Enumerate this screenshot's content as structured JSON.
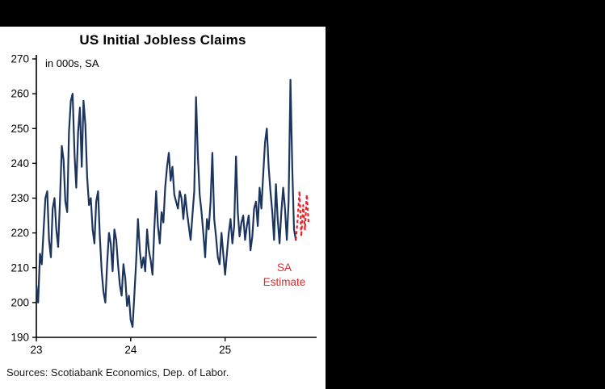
{
  "window": {
    "background": "#000000",
    "panel_background": "#ffffff"
  },
  "chart": {
    "title": "US Initial Jobless Claims",
    "subtitle": "in 000s, SA",
    "source": "Sources: Scotiabank Economics, Dep. of Labor.",
    "annotation": {
      "line1": "SA",
      "line2": "Estimate",
      "color": "#e5262b"
    }
  },
  "chart_data": {
    "type": "line",
    "title": "US Initial Jobless Claims",
    "ylabel": "in 000s, SA",
    "ylim": [
      190,
      270
    ],
    "xlim": [
      23,
      25.97
    ],
    "y_ticks": [
      190,
      200,
      210,
      220,
      230,
      240,
      250,
      260,
      270
    ],
    "x_ticks": [
      {
        "label": "23",
        "value": 23
      },
      {
        "label": "24",
        "value": 24
      },
      {
        "label": "25",
        "value": 25
      }
    ],
    "x_unit": "year (weekly observations)",
    "grid": false,
    "legend_position": "none",
    "series": [
      {
        "name": "US initial jobless claims (actual, SA)",
        "color": "#1c355e",
        "dash": false,
        "weeks_per_year": 52,
        "x_start": 23,
        "values": [
          205,
          200,
          214,
          211,
          221,
          230,
          232,
          218,
          213,
          227,
          230,
          221,
          216,
          229,
          245,
          241,
          229,
          226,
          249,
          258,
          260,
          243,
          233,
          249,
          256,
          239,
          258,
          251,
          236,
          228,
          230,
          221,
          217,
          229,
          232,
          219,
          209,
          203,
          200,
          211,
          220,
          217,
          209,
          221,
          218,
          211,
          205,
          202,
          211,
          207,
          199,
          202,
          195,
          193,
          202,
          212,
          224,
          215,
          210,
          213,
          209,
          221,
          215,
          212,
          208,
          221,
          232,
          222,
          217,
          226,
          223,
          233,
          239,
          243,
          235,
          239,
          231,
          229,
          227,
          232,
          230,
          224,
          231,
          226,
          222,
          218,
          225,
          232,
          259,
          242,
          231,
          226,
          220,
          213,
          224,
          221,
          229,
          243,
          224,
          219,
          213,
          211,
          220,
          214,
          208,
          214,
          220,
          224,
          217,
          222,
          242,
          226,
          219,
          223,
          225,
          218,
          222,
          225,
          215,
          219,
          227,
          229,
          222,
          233,
          227,
          237,
          246,
          250,
          239,
          232,
          226,
          218,
          234,
          224,
          217,
          226,
          233,
          227,
          218,
          229,
          264,
          239,
          221,
          218
        ]
      },
      {
        "name": "SA Estimate",
        "color": "#e5262b",
        "dash": true,
        "values": [
          224,
          232,
          219,
          228,
          221,
          231,
          223
        ]
      }
    ]
  }
}
